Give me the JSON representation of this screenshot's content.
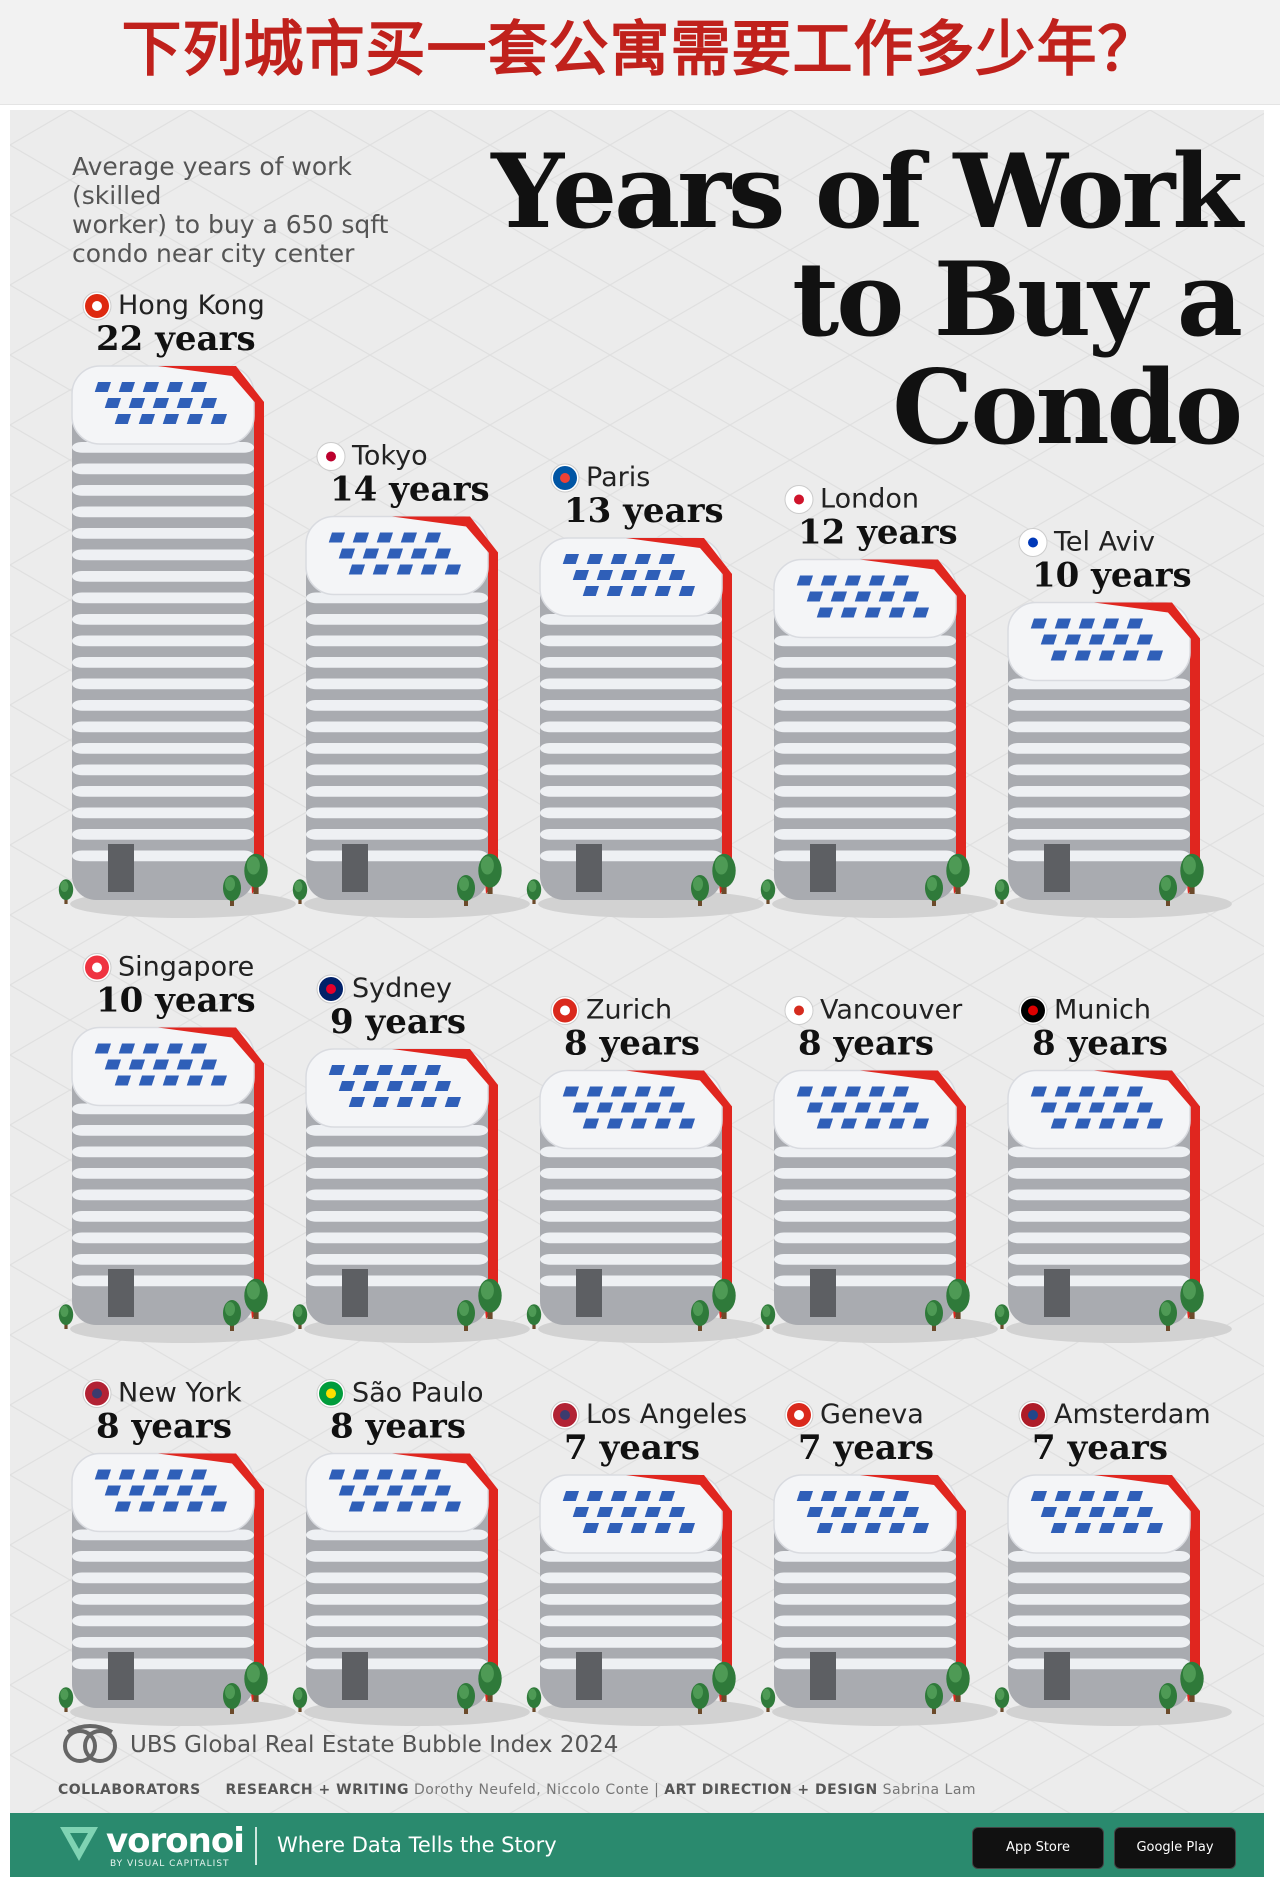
{
  "banner": {
    "title": "下列城市买一套公寓需要工作多少年？"
  },
  "header": {
    "subtitle_lines": [
      "Average years of work (skilled",
      "worker) to buy a 650 sqft",
      "condo near city center"
    ],
    "title_lines": [
      "Years of Work",
      "to Buy a Condo"
    ]
  },
  "chart_data": {
    "type": "bar",
    "title": "Years of Work to Buy a Condo",
    "subtitle": "Average years of work (skilled worker) to buy a 650 sqft condo near city center",
    "categories": [
      "Hong Kong",
      "Tokyo",
      "Paris",
      "London",
      "Tel Aviv",
      "Singapore",
      "Sydney",
      "Zurich",
      "Vancouver",
      "Munich",
      "New York",
      "São Paulo",
      "Los Angeles",
      "Geneva",
      "Amsterdam"
    ],
    "values": [
      22,
      14,
      13,
      12,
      10,
      10,
      9,
      8,
      8,
      8,
      8,
      8,
      7,
      7,
      7
    ],
    "value_labels": [
      "22 years",
      "14 years",
      "13 years",
      "12 years",
      "10 years",
      "10 years",
      "9 years",
      "8 years",
      "8 years",
      "8 years",
      "8 years",
      "8 years",
      "7 years",
      "7 years",
      "7 years"
    ],
    "unit": "years",
    "xlabel": "",
    "ylabel": "",
    "grid": false,
    "flags": [
      "hong-kong-flag-icon",
      "japan-flag-icon",
      "france-flag-icon",
      "england-flag-icon",
      "israel-flag-icon",
      "singapore-flag-icon",
      "australia-flag-icon",
      "switzerland-flag-icon",
      "canada-flag-icon",
      "germany-flag-icon",
      "usa-flag-icon",
      "brazil-flag-icon",
      "usa-flag-icon",
      "switzerland-flag-icon",
      "netherlands-flag-icon"
    ]
  },
  "colors": {
    "accent_red": "#e0261f",
    "window_blue": "#2f5fb8",
    "building_grey": "#a9abb0",
    "tree_green": "#2f7a3a",
    "footer_green": "#2a8a6e",
    "banner_red": "#c0211c"
  },
  "source": {
    "text": "UBS Global Real Estate Bubble Index 2024",
    "icon": "magnifier-icon"
  },
  "credits": {
    "collaborators": "COLLABORATORS",
    "research_label": "RESEARCH + WRITING",
    "research_names": "Dorothy Neufeld, Niccolo Conte",
    "separator": "|",
    "art_label": "ART DIRECTION + DESIGN",
    "art_names": "Sabrina Lam"
  },
  "footer": {
    "brand": "voronoi",
    "brand_sub": "BY VISUAL CAPITALIST",
    "tagline": "Where Data Tells the Story",
    "store1": "App Store",
    "store2": "Google Play"
  }
}
